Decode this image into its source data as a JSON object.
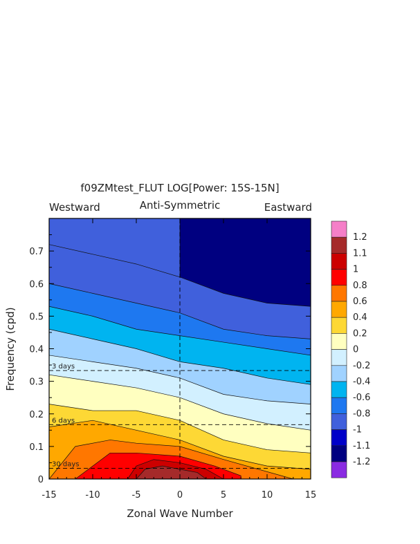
{
  "chart_data": {
    "type": "heatmap",
    "title": "f09ZMtest_FLUT LOG[Power: 15S-15N]",
    "subtitle": "Anti-Symmetric",
    "corner_left": "Westward",
    "corner_right": "Eastward",
    "xlabel": "Zonal Wave Number",
    "ylabel": "Frequency (cpd)",
    "xlim": [
      -15,
      15
    ],
    "ylim": [
      0,
      0.8
    ],
    "xticks": [
      "-15",
      "-10",
      "-5",
      "0",
      "5",
      "10",
      "15"
    ],
    "xtick_values": [
      -15,
      -10,
      -5,
      0,
      5,
      10,
      15
    ],
    "yticks": [
      "0",
      "0.1",
      "0.2",
      "0.3",
      "0.4",
      "0.5",
      "0.6",
      "0.7"
    ],
    "ytick_values": [
      0,
      0.1,
      0.2,
      0.3,
      0.4,
      0.5,
      0.6,
      0.7
    ],
    "reference_lines": [
      {
        "label": "3 days",
        "frequency": 0.333
      },
      {
        "label": "6 days",
        "frequency": 0.167
      },
      {
        "label": "30 days",
        "frequency": 0.033
      }
    ],
    "colorbar": {
      "labels": [
        "1.2",
        "1.1",
        "1",
        "0.8",
        "0.6",
        "0.4",
        "0.2",
        "0",
        "-0.2",
        "-0.4",
        "-0.6",
        "-0.8",
        "-1",
        "-1.1",
        "-1.2"
      ],
      "levels": [
        1.2,
        1.1,
        1.0,
        0.8,
        0.6,
        0.4,
        0.2,
        0,
        -0.2,
        -0.4,
        -0.6,
        -0.8,
        -1.0,
        -1.1,
        -1.2
      ],
      "colors": [
        "#f57fc8",
        "#a52a2a",
        "#cc0000",
        "#ff0000",
        "#ff7700",
        "#ffa800",
        "#fdd835",
        "#ffffc0",
        "#d2f0ff",
        "#a0d2ff",
        "#00b4f0",
        "#1e78f0",
        "#4060dc",
        "#0000c8",
        "#000080",
        "#8a2be2"
      ]
    },
    "contours": [
      {
        "level": -1.0,
        "frequency_at_k": [
          [
            0,
            0.8
          ],
          [
            15,
            0.8
          ]
        ]
      },
      {
        "level": -0.8,
        "frequency_at_k": [
          [
            -15,
            0.72
          ],
          [
            -10,
            0.69
          ],
          [
            -5,
            0.66
          ],
          [
            0,
            0.62
          ],
          [
            5,
            0.57
          ],
          [
            10,
            0.54
          ],
          [
            15,
            0.53
          ]
        ]
      },
      {
        "level": -0.6,
        "frequency_at_k": [
          [
            -15,
            0.6
          ],
          [
            -10,
            0.57
          ],
          [
            -5,
            0.54
          ],
          [
            0,
            0.51
          ],
          [
            5,
            0.46
          ],
          [
            10,
            0.44
          ],
          [
            15,
            0.43
          ]
        ]
      },
      {
        "level": -0.4,
        "frequency_at_k": [
          [
            -15,
            0.53
          ],
          [
            -10,
            0.5
          ],
          [
            -5,
            0.46
          ],
          [
            0,
            0.44
          ],
          [
            5,
            0.42
          ],
          [
            10,
            0.4
          ],
          [
            15,
            0.38
          ]
        ]
      },
      {
        "level": -0.2,
        "frequency_at_k": [
          [
            -15,
            0.46
          ],
          [
            -10,
            0.43
          ],
          [
            -5,
            0.4
          ],
          [
            0,
            0.36
          ],
          [
            5,
            0.34
          ],
          [
            10,
            0.31
          ],
          [
            15,
            0.29
          ]
        ]
      },
      {
        "level": 0,
        "frequency_at_k": [
          [
            -15,
            0.38
          ],
          [
            -10,
            0.36
          ],
          [
            -5,
            0.34
          ],
          [
            0,
            0.31
          ],
          [
            5,
            0.26
          ],
          [
            10,
            0.24
          ],
          [
            15,
            0.23
          ]
        ]
      },
      {
        "level": 0.2,
        "frequency_at_k": [
          [
            -15,
            0.32
          ],
          [
            -10,
            0.3
          ],
          [
            -5,
            0.28
          ],
          [
            0,
            0.25
          ],
          [
            5,
            0.2
          ],
          [
            10,
            0.17
          ],
          [
            15,
            0.15
          ]
        ]
      },
      {
        "level": 0.4,
        "frequency_at_k": [
          [
            -15,
            0.23
          ],
          [
            -10,
            0.21
          ],
          [
            -5,
            0.21
          ],
          [
            0,
            0.18
          ],
          [
            5,
            0.12
          ],
          [
            10,
            0.09
          ],
          [
            15,
            0.08
          ]
        ]
      },
      {
        "level": 0.6,
        "frequency_at_k": [
          [
            -15,
            0.16
          ],
          [
            -10,
            0.18
          ],
          [
            -5,
            0.15
          ],
          [
            0,
            0.12
          ],
          [
            5,
            0.07
          ],
          [
            10,
            0.04
          ],
          [
            15,
            0.03
          ]
        ]
      },
      {
        "level": 0.8,
        "frequency_at_k": [
          [
            -15,
            0.0
          ],
          [
            -12,
            0.1
          ],
          [
            -8,
            0.12
          ],
          [
            -5,
            0.11
          ],
          [
            0,
            0.1
          ],
          [
            5,
            0.06
          ],
          [
            9,
            0.03
          ],
          [
            13,
            0.0
          ]
        ]
      },
      {
        "level": 1.0,
        "frequency_at_k": [
          [
            -12,
            0.0
          ],
          [
            -8,
            0.08
          ],
          [
            -5,
            0.08
          ],
          [
            0,
            0.07
          ],
          [
            4,
            0.04
          ],
          [
            7,
            0.01
          ],
          [
            7,
            0.0
          ]
        ]
      },
      {
        "level": 1.1,
        "frequency_at_k": [
          [
            -6,
            0.0
          ],
          [
            -5,
            0.04
          ],
          [
            -3,
            0.06
          ],
          [
            0,
            0.05
          ],
          [
            3,
            0.03
          ],
          [
            5,
            0.0
          ]
        ]
      },
      {
        "level": 1.2,
        "frequency_at_k": [
          [
            -5,
            0.0
          ],
          [
            -4,
            0.03
          ],
          [
            -2,
            0.04
          ],
          [
            0,
            0.03
          ],
          [
            2,
            0.02
          ],
          [
            3,
            0.0
          ]
        ]
      }
    ]
  }
}
